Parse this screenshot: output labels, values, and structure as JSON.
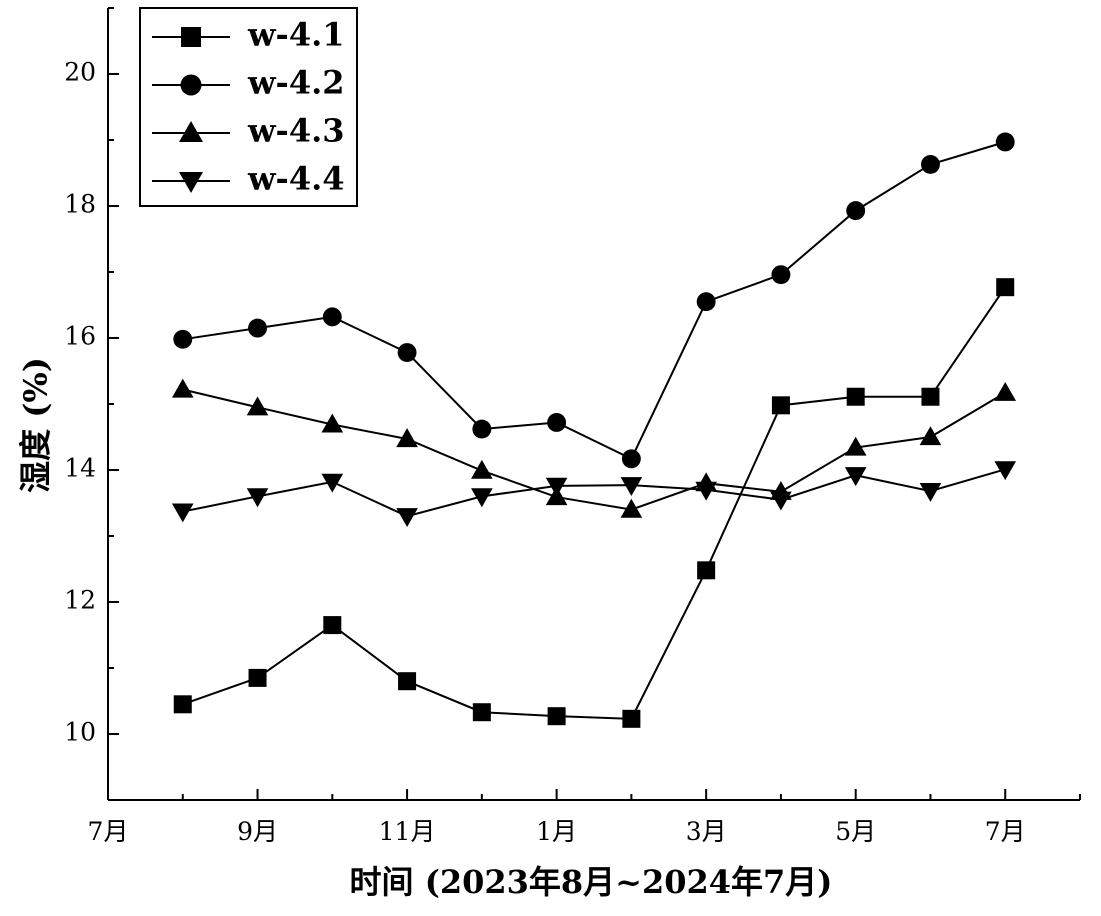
{
  "chart_data": {
    "type": "line",
    "ylabel": "湿度 (%)",
    "xlabel": "时间 (2023年8月~2024年7月)",
    "x_ticks": [
      "7月",
      "9月",
      "11月",
      "1月",
      "3月",
      "5月",
      "7月"
    ],
    "y_ticks": [
      "10",
      "12",
      "14",
      "16",
      "18",
      "20"
    ],
    "ylim": [
      9,
      21
    ],
    "x_range_months": [
      0,
      13
    ],
    "legend_position": "top-left",
    "grid": false,
    "series": [
      {
        "name": "w-4.1",
        "marker": "square",
        "x": [
          1,
          2,
          3,
          4,
          5,
          6,
          7,
          8,
          9,
          10,
          11,
          12
        ],
        "values": [
          10.45,
          10.85,
          11.65,
          10.8,
          10.33,
          10.27,
          10.23,
          12.48,
          14.98,
          15.11,
          15.11,
          16.77
        ]
      },
      {
        "name": "w-4.2",
        "marker": "circle",
        "x": [
          1,
          2,
          3,
          4,
          5,
          6,
          7,
          8,
          9,
          10,
          11,
          12
        ],
        "values": [
          15.98,
          16.15,
          16.32,
          15.78,
          14.62,
          14.72,
          14.17,
          16.55,
          16.96,
          17.93,
          18.63,
          18.97
        ]
      },
      {
        "name": "w-4.3",
        "marker": "triangle-up",
        "x": [
          1,
          2,
          3,
          4,
          5,
          6,
          7,
          8,
          9,
          10,
          11,
          12
        ],
        "values": [
          15.22,
          14.95,
          14.69,
          14.47,
          13.99,
          13.59,
          13.4,
          13.8,
          13.67,
          14.34,
          14.5,
          15.17
        ]
      },
      {
        "name": "w-4.4",
        "marker": "triangle-down",
        "x": [
          1,
          2,
          3,
          4,
          5,
          6,
          7,
          8,
          9,
          10,
          11,
          12
        ],
        "values": [
          13.37,
          13.6,
          13.82,
          13.3,
          13.6,
          13.76,
          13.77,
          13.7,
          13.55,
          13.92,
          13.68,
          14.01
        ]
      }
    ]
  }
}
